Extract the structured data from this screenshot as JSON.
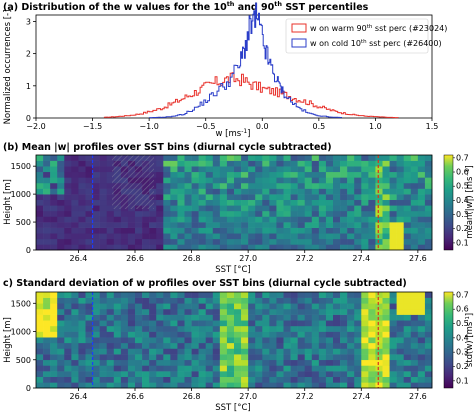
{
  "chart_data": [
    {
      "type": "line",
      "panel": "a",
      "title_parts": [
        "(a) Distribution of the w values for the 10",
        "th",
        " and 90",
        "th",
        " SST percentiles"
      ],
      "xlabel_parts": [
        "w [ms",
        "-1",
        "]"
      ],
      "ylabel": "Normalized occurrences [-]",
      "xlim": [
        -2.0,
        1.5
      ],
      "ylim": [
        0,
        3.2
      ],
      "xticks": [
        "−2.0",
        "−1.5",
        "−1.0",
        "−0.5",
        "0.0",
        "0.5",
        "1.0",
        "1.5"
      ],
      "xtick_values": [
        -2.0,
        -1.5,
        -1.0,
        -0.5,
        0.0,
        0.5,
        1.0,
        1.5
      ],
      "yticks": [
        "0",
        "1",
        "2",
        "3"
      ],
      "ytick_values": [
        0,
        1,
        2,
        3
      ],
      "legend_position": "top-right",
      "series": [
        {
          "name_parts": [
            "w on warm 90",
            "th",
            " sst perc (#23024)"
          ],
          "color": "#e8302a",
          "x": [
            -1.4,
            -1.3,
            -1.2,
            -1.1,
            -1.0,
            -0.9,
            -0.8,
            -0.7,
            -0.6,
            -0.5,
            -0.4,
            -0.3,
            -0.2,
            -0.1,
            0.0,
            0.1,
            0.2,
            0.3,
            0.4,
            0.5,
            0.6,
            0.7,
            0.8,
            0.9,
            1.0,
            1.1,
            1.2
          ],
          "values": [
            0.02,
            0.04,
            0.07,
            0.12,
            0.2,
            0.3,
            0.45,
            0.62,
            0.8,
            0.98,
            1.12,
            1.22,
            1.2,
            1.05,
            0.9,
            0.82,
            0.72,
            0.6,
            0.48,
            0.35,
            0.24,
            0.16,
            0.1,
            0.06,
            0.04,
            0.02,
            0.01
          ]
        },
        {
          "name_parts": [
            "w on cold 10",
            "th",
            " sst perc (#26400)"
          ],
          "color": "#2b3ec9",
          "x": [
            -1.0,
            -0.9,
            -0.8,
            -0.7,
            -0.6,
            -0.5,
            -0.4,
            -0.3,
            -0.2,
            -0.15,
            -0.1,
            -0.05,
            0.0,
            0.05,
            0.1,
            0.15,
            0.2,
            0.3,
            0.4,
            0.5,
            0.6,
            0.7
          ],
          "values": [
            0.01,
            0.02,
            0.05,
            0.12,
            0.3,
            0.55,
            0.85,
            1.15,
            1.7,
            2.3,
            2.9,
            3.1,
            2.4,
            1.8,
            1.35,
            1.0,
            0.7,
            0.35,
            0.15,
            0.07,
            0.03,
            0.01
          ]
        }
      ]
    },
    {
      "type": "heatmap",
      "panel": "b",
      "title": "(b) Mean |w| profiles over SST bins (diurnal cycle subtracted)",
      "xlabel": "SST [°C]",
      "ylabel": "Height [m]",
      "xlim": [
        26.25,
        27.65
      ],
      "ylim": [
        0,
        1700
      ],
      "xticks": [
        "26.4",
        "26.6",
        "26.8",
        "27.0",
        "27.2",
        "27.4",
        "27.6"
      ],
      "xtick_values": [
        26.4,
        26.6,
        26.8,
        27.0,
        27.2,
        27.4,
        27.6
      ],
      "yticks": [
        "0",
        "500",
        "1000",
        "1500"
      ],
      "ytick_values": [
        0,
        500,
        1000,
        1500
      ],
      "vline_cold": 26.45,
      "vline_warm": 27.46,
      "colorbar_label": "mean(|w|) [ms⁻¹]",
      "colorbar_ticks": [
        "0.1",
        "0.2",
        "0.3",
        "0.4",
        "0.5",
        "0.6",
        "0.7"
      ],
      "colorbar_tick_values": [
        0.1,
        0.2,
        0.3,
        0.4,
        0.5,
        0.6,
        0.7
      ],
      "vmin": 0.05,
      "vmax": 0.72
    },
    {
      "type": "heatmap",
      "panel": "c",
      "title": "c) Standard deviation of w profiles over SST bins (diurnal cycle subtracted)",
      "xlabel": "SST [°C]",
      "ylabel": "Height [m]",
      "xlim": [
        26.25,
        27.65
      ],
      "ylim": [
        0,
        1700
      ],
      "xticks": [
        "26.4",
        "26.6",
        "26.8",
        "27.0",
        "27.2",
        "27.4",
        "27.6"
      ],
      "xtick_values": [
        26.4,
        26.6,
        26.8,
        27.0,
        27.2,
        27.4,
        27.6
      ],
      "yticks": [
        "0",
        "500",
        "1000",
        "1500"
      ],
      "ytick_values": [
        0,
        500,
        1000,
        1500
      ],
      "vline_cold": 26.45,
      "vline_warm": 27.46,
      "colorbar_label_parts": [
        "std(w) [ms",
        "-1",
        "]"
      ],
      "colorbar_ticks": [
        "0.1",
        "0.2",
        "0.3",
        "0.4",
        "0.5",
        "0.6",
        "0.7"
      ],
      "colorbar_tick_values": [
        0.1,
        0.2,
        0.3,
        0.4,
        0.5,
        0.6,
        0.7
      ],
      "vmin": 0.05,
      "vmax": 0.72
    }
  ]
}
